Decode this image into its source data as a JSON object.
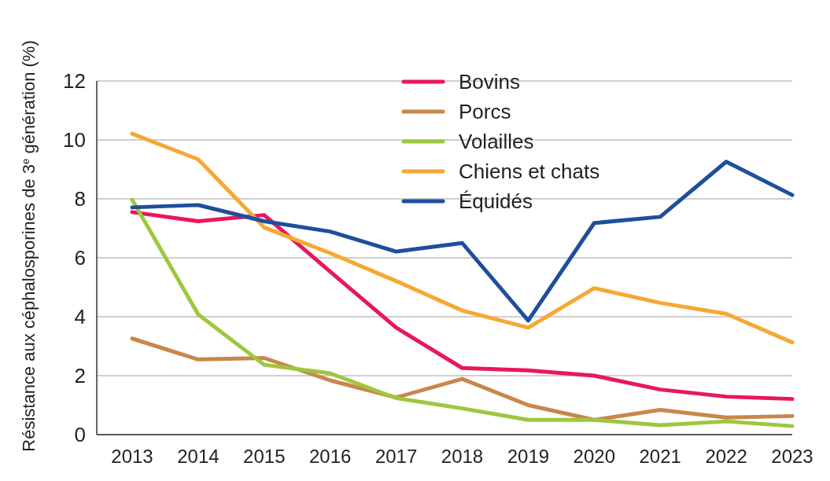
{
  "chart_data": {
    "type": "line",
    "ylabel": "Résistance aux céphalosporines de 3$^{e}$ génération (%)",
    "categories": [
      "2013",
      "2014",
      "2015",
      "2016",
      "2017",
      "2018",
      "2019",
      "2020",
      "2021",
      "2022",
      "2023"
    ],
    "ylim": [
      0,
      12
    ],
    "yticks": [
      0,
      2,
      4,
      6,
      8,
      10,
      12
    ],
    "grid": "y",
    "legend": "top",
    "marker": "none",
    "line_style": "solid",
    "series": [
      {
        "name": "Bovins",
        "color": "#e8175d",
        "values": [
          7.55,
          7.24,
          7.45,
          5.53,
          3.63,
          2.26,
          2.18,
          2.0,
          1.53,
          1.29,
          1.21
        ]
      },
      {
        "name": "Porcs",
        "color": "#c8874a",
        "values": [
          3.26,
          2.55,
          2.6,
          1.84,
          1.26,
          1.89,
          1.0,
          0.5,
          0.84,
          0.58,
          0.63
        ]
      },
      {
        "name": "Volailles",
        "color": "#9dc73e",
        "values": [
          7.97,
          4.08,
          2.37,
          2.08,
          1.24,
          0.89,
          0.5,
          0.5,
          0.32,
          0.45,
          0.29
        ]
      },
      {
        "name": "Chiens et chats",
        "color": "#f6a833",
        "values": [
          10.21,
          9.34,
          7.03,
          6.16,
          5.21,
          4.21,
          3.63,
          4.97,
          4.47,
          4.1,
          3.13
        ]
      },
      {
        "name": "Équidés",
        "color": "#1f4e9c",
        "values": [
          7.71,
          7.79,
          7.24,
          6.89,
          6.21,
          6.5,
          3.87,
          7.18,
          7.39,
          9.26,
          8.13
        ]
      }
    ]
  }
}
